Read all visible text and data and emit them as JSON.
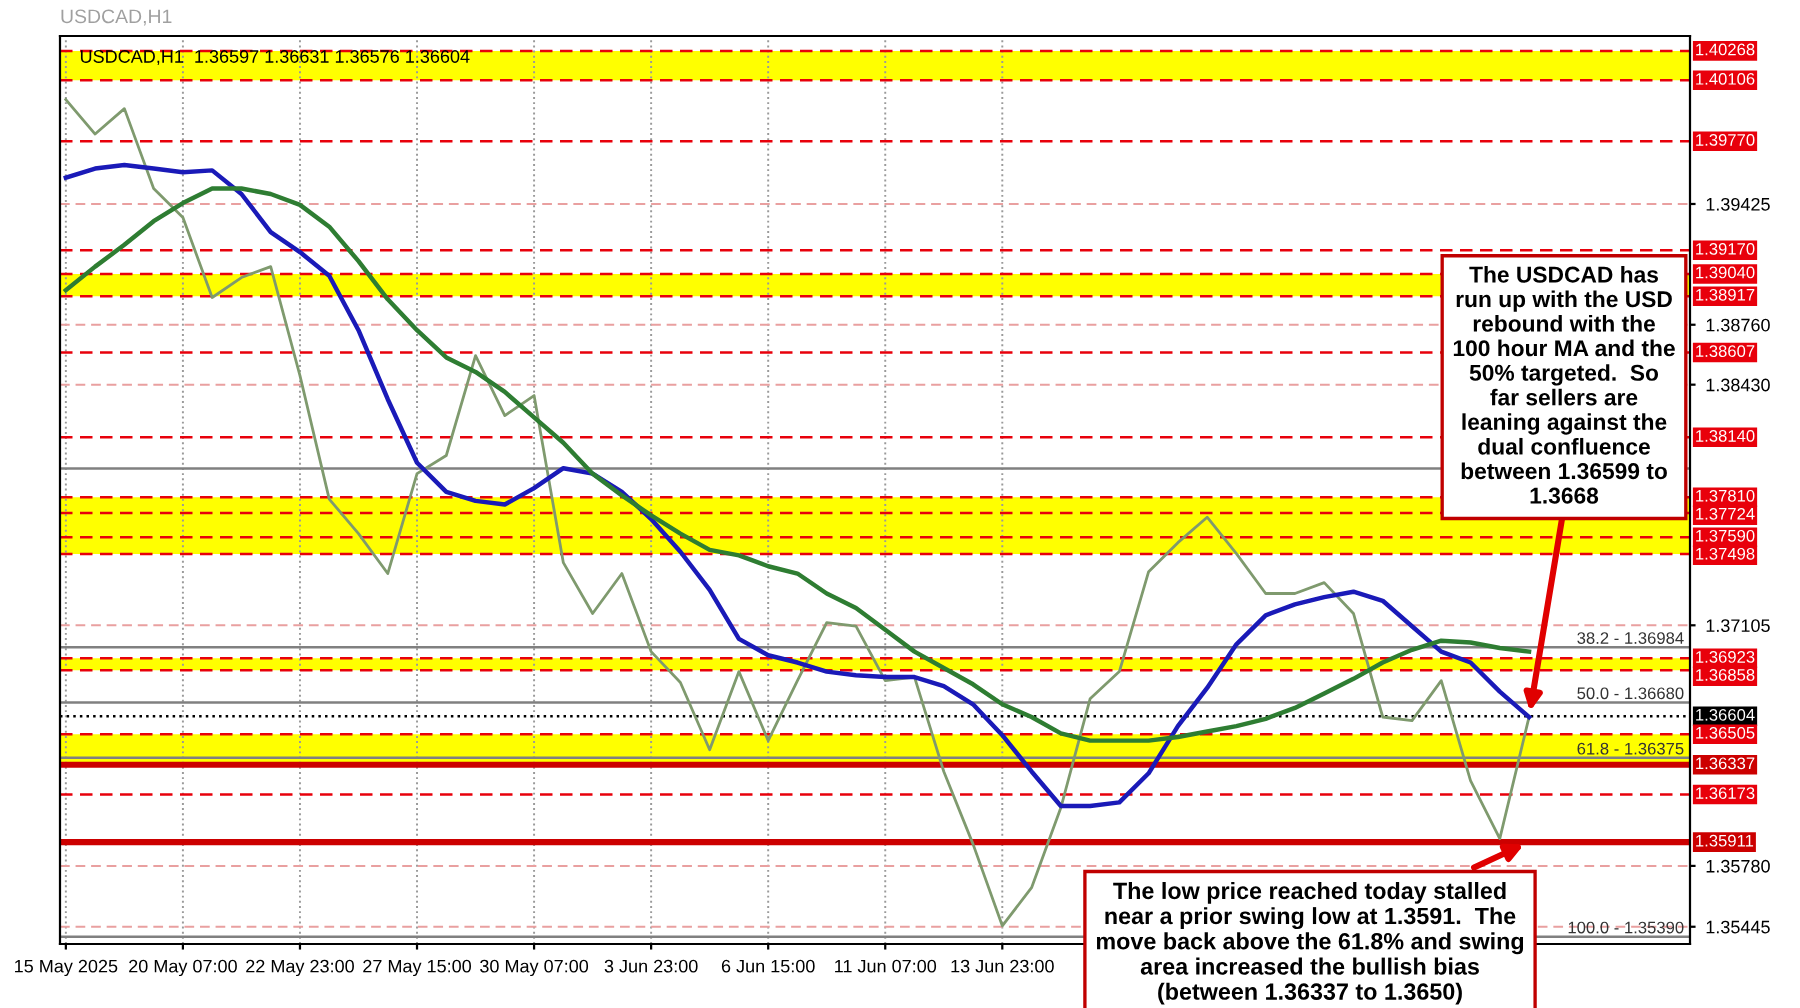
{
  "chart_data": {
    "type": "line",
    "title": "USDCAD,H1  1.36597 1.36631 1.36576 1.36604",
    "subtitle": "USDCAD,H1",
    "categories": [
      "15 May 2025",
      null,
      null,
      null,
      "20 May 07:00",
      null,
      null,
      null,
      "22 May 23:00",
      null,
      null,
      null,
      "27 May 15:00",
      null,
      null,
      null,
      "30 May 07:00",
      null,
      null,
      null,
      "3 Jun 23:00",
      null,
      null,
      null,
      "6 Jun 15:00",
      null,
      null,
      null,
      "11 Jun 07:00",
      null,
      null,
      null,
      "13 Jun 23:00",
      null,
      null,
      null,
      null,
      null,
      null,
      null,
      null,
      null,
      null,
      null,
      null,
      null,
      null,
      null,
      null,
      null,
      null,
      null,
      null,
      null,
      null,
      null
    ],
    "ylim": [
      1.3535,
      1.4035
    ],
    "yticks": [
      {
        "value": 1.35445,
        "label": "1.35445"
      },
      {
        "value": 1.3578,
        "label": "1.35780"
      },
      {
        "value": 1.37105,
        "label": "1.37105"
      },
      {
        "value": 1.3843,
        "label": "1.38430"
      },
      {
        "value": 1.3876,
        "label": "1.38760"
      },
      {
        "value": 1.39425,
        "label": "1.39425"
      }
    ],
    "grid": true,
    "series": [
      {
        "color": "#7f9a6e",
        "values": [
          1.4,
          1.3981,
          1.3995,
          1.3951,
          1.3935,
          1.3891,
          1.3902,
          1.3908,
          1.3848,
          1.378,
          1.3761,
          1.3739,
          1.3794,
          1.3804,
          1.3859,
          1.3826,
          1.3837,
          1.3745,
          1.3717,
          1.3739,
          1.3696,
          1.3679,
          1.3642,
          1.3685,
          1.3647,
          1.368,
          1.3712,
          1.371,
          1.368,
          1.3682,
          1.363,
          1.359,
          1.3545,
          1.3566,
          1.361,
          1.367,
          1.3685,
          1.374,
          1.3756,
          1.377,
          1.375,
          1.3728,
          1.3728,
          1.3734,
          1.3717,
          1.366,
          1.3658,
          1.368,
          1.3625,
          1.3593,
          1.366,
          null,
          null,
          null,
          null,
          null
        ]
      },
      {
        "color": "#1a1ab8",
        "values": [
          1.3957,
          1.3962,
          1.3964,
          1.3962,
          1.396,
          1.3961,
          1.3948,
          1.3927,
          1.3916,
          1.3903,
          1.3873,
          1.3835,
          1.38,
          1.3784,
          1.3779,
          1.3777,
          1.3786,
          1.3797,
          1.3794,
          1.3784,
          1.3769,
          1.3751,
          1.373,
          1.3703,
          1.3694,
          1.369,
          1.3685,
          1.3683,
          1.3682,
          1.3682,
          1.3677,
          1.3667,
          1.365,
          1.363,
          1.3611,
          1.3611,
          1.3613,
          1.3629,
          1.3655,
          1.3676,
          1.37,
          1.3716,
          1.3722,
          1.3726,
          1.3729,
          1.3724,
          1.371,
          1.3696,
          1.369,
          1.3674,
          1.366,
          null,
          null,
          null,
          null,
          null
        ]
      },
      {
        "color": "#2e7d32",
        "values": [
          1.3895,
          1.3908,
          1.392,
          1.3933,
          1.3943,
          1.3951,
          1.3951,
          1.3948,
          1.3942,
          1.393,
          1.3911,
          1.389,
          1.3873,
          1.3858,
          1.385,
          1.3839,
          1.3825,
          1.3811,
          1.3794,
          1.3782,
          1.3771,
          1.3761,
          1.3752,
          1.3749,
          1.3743,
          1.3739,
          1.3728,
          1.372,
          1.3708,
          1.3696,
          1.3687,
          1.3678,
          1.3667,
          1.366,
          1.3651,
          1.3647,
          1.3647,
          1.3647,
          1.3649,
          1.3652,
          1.3655,
          1.3659,
          1.3665,
          1.3673,
          1.3681,
          1.369,
          1.3697,
          1.3702,
          1.3701,
          1.3698,
          1.3696,
          null,
          null,
          null,
          null,
          null
        ]
      }
    ],
    "bands": [
      {
        "axis": "y",
        "from": 1.40106,
        "to": 1.40268,
        "color": "#ffff00"
      },
      {
        "axis": "y",
        "from": 1.38917,
        "to": 1.3904,
        "color": "#ffff00"
      },
      {
        "axis": "y",
        "from": 1.37498,
        "to": 1.3781,
        "color": "#ffff00"
      },
      {
        "axis": "y",
        "from": 1.36858,
        "to": 1.36923,
        "color": "#ffff00"
      },
      {
        "axis": "y",
        "from": 1.36337,
        "to": 1.36505,
        "color": "#ffff00"
      }
    ],
    "ref_lines": [
      {
        "axis": "y",
        "value": 1.40268,
        "label": "1.40268",
        "color": "#e8000b",
        "line_style": "dashed"
      },
      {
        "axis": "y",
        "value": 1.40106,
        "label": "1.40106",
        "color": "#e8000b",
        "line_style": "dashed"
      },
      {
        "axis": "y",
        "value": 1.3977,
        "label": "1.39770",
        "color": "#e8000b",
        "line_style": "dashed"
      },
      {
        "axis": "y",
        "value": 1.3917,
        "label": "1.39170",
        "color": "#e8000b",
        "line_style": "dashed"
      },
      {
        "axis": "y",
        "value": 1.3904,
        "label": "1.39040",
        "color": "#e8000b",
        "line_style": "dashed"
      },
      {
        "axis": "y",
        "value": 1.38917,
        "label": "1.38917",
        "color": "#e8000b",
        "line_style": "dashed"
      },
      {
        "axis": "y",
        "value": 1.38607,
        "label": "1.38607",
        "color": "#e8000b",
        "line_style": "dashed"
      },
      {
        "axis": "y",
        "value": 1.3814,
        "label": "1.38140",
        "color": "#e8000b",
        "line_style": "dashed"
      },
      {
        "axis": "y",
        "value": 1.3781,
        "label": "1.37810",
        "color": "#e8000b",
        "line_style": "dashed"
      },
      {
        "axis": "y",
        "value": 1.37724,
        "label": "1.37724",
        "color": "#e8000b",
        "line_style": "dashed"
      },
      {
        "axis": "y",
        "value": 1.3759,
        "label": "1.37590",
        "color": "#e8000b",
        "line_style": "dashed"
      },
      {
        "axis": "y",
        "value": 1.37498,
        "label": "1.37498",
        "color": "#e8000b",
        "line_style": "dashed"
      },
      {
        "axis": "y",
        "value": 1.36923,
        "label": "1.36923",
        "color": "#e8000b",
        "line_style": "dashed"
      },
      {
        "axis": "y",
        "value": 1.36858,
        "label": "1.36858",
        "color": "#e8000b",
        "line_style": "dashed"
      },
      {
        "axis": "y",
        "value": 1.36604,
        "label": "1.36604",
        "color": "#000000",
        "line_style": "dotted"
      },
      {
        "axis": "y",
        "value": 1.36505,
        "label": "1.36505",
        "color": "#e8000b",
        "line_style": "dashed"
      },
      {
        "axis": "y",
        "value": 1.36337,
        "label": "1.36337",
        "color": "#cc0000",
        "line_style": "solid"
      },
      {
        "axis": "y",
        "value": 1.36173,
        "label": "1.36173",
        "color": "#e8000b",
        "line_style": "dashed"
      },
      {
        "axis": "y",
        "value": 1.35911,
        "label": "1.35911",
        "color": "#cc0000",
        "line_style": "solid"
      },
      {
        "axis": "y",
        "value": 1.37969,
        "color": "#808080",
        "line_style": "solid"
      },
      {
        "axis": "y",
        "value": 1.36984,
        "color": "#808080",
        "line_style": "solid"
      },
      {
        "axis": "y",
        "value": 1.3668,
        "color": "#808080",
        "line_style": "solid"
      },
      {
        "axis": "y",
        "value": 1.36375,
        "color": "#808080",
        "line_style": "solid"
      },
      {
        "axis": "y",
        "value": 1.3539,
        "color": "#808080",
        "line_style": "solid"
      }
    ],
    "annotations": [
      {
        "text": "The USDCAD has run up with the USD rebound with the 100 hour MA and the 50% targeted.  So far sellers are leaning against the dual confluence between 1.36599 to 1.3668"
      },
      {
        "text": "The low price reached today stalled near a prior swing low at 1.3591.  The move back above the 61.8% and swing area increased the bullish bias (between 1.36337 to 1.3650)",
        "y": 1.35911
      },
      {
        "text": "38.2 - 1.36984",
        "y": 1.36984
      },
      {
        "text": "50.0 - 1.36680",
        "y": 1.3668
      },
      {
        "text": "61.8 - 1.36375",
        "y": 1.36375
      },
      {
        "text": "100.0 - 1.35390",
        "y": 1.3539
      }
    ]
  }
}
